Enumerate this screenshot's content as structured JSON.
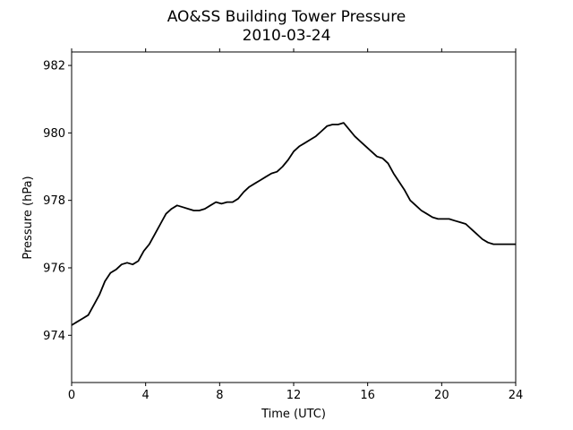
{
  "chart_data": {
    "type": "line",
    "title": "AO&SS Building Tower Pressure",
    "subtitle": "2010-03-24",
    "xlabel": "Time (UTC)",
    "ylabel": "Pressure (hPa)",
    "xlim": [
      0,
      24
    ],
    "ylim": [
      972.6,
      982.4
    ],
    "xticks": [
      0,
      4,
      8,
      12,
      16,
      20,
      24
    ],
    "yticks": [
      974,
      976,
      978,
      980,
      982
    ],
    "grid": false,
    "line_color": "#000000",
    "series": [
      {
        "x": [
          0,
          0.3,
          0.6,
          0.9,
          1.2,
          1.5,
          1.8,
          2.1,
          2.4,
          2.7,
          3.0,
          3.3,
          3.6,
          3.9,
          4.2,
          4.5,
          4.8,
          5.1,
          5.4,
          5.7,
          6.0,
          6.3,
          6.6,
          6.9,
          7.2,
          7.5,
          7.8,
          8.1,
          8.4,
          8.7,
          9.0,
          9.3,
          9.6,
          9.9,
          10.2,
          10.5,
          10.8,
          11.1,
          11.4,
          11.7,
          12.0,
          12.3,
          12.6,
          12.9,
          13.2,
          13.5,
          13.8,
          14.1,
          14.4,
          14.7,
          15.0,
          15.3,
          15.6,
          15.9,
          16.2,
          16.5,
          16.8,
          17.1,
          17.4,
          17.7,
          18.0,
          18.3,
          18.6,
          18.9,
          19.2,
          19.5,
          19.8,
          20.1,
          20.4,
          20.7,
          21.0,
          21.3,
          21.6,
          21.9,
          22.2,
          22.5,
          22.8,
          23.1,
          23.4,
          23.7,
          24.0
        ],
        "y": [
          974.3,
          974.4,
          974.5,
          974.6,
          974.9,
          975.2,
          975.6,
          975.85,
          975.95,
          976.1,
          976.15,
          976.1,
          976.2,
          976.5,
          976.7,
          977.0,
          977.3,
          977.6,
          977.75,
          977.85,
          977.8,
          977.75,
          977.7,
          977.7,
          977.75,
          977.85,
          977.95,
          977.9,
          977.95,
          977.95,
          978.05,
          978.25,
          978.4,
          978.5,
          978.6,
          978.7,
          978.8,
          978.85,
          979.0,
          979.2,
          979.45,
          979.6,
          979.7,
          979.8,
          979.9,
          980.05,
          980.2,
          980.25,
          980.25,
          980.3,
          980.1,
          979.9,
          979.75,
          979.6,
          979.45,
          979.3,
          979.25,
          979.1,
          978.8,
          978.55,
          978.3,
          978.0,
          977.85,
          977.7,
          977.6,
          977.5,
          977.45,
          977.45,
          977.45,
          977.4,
          977.35,
          977.3,
          977.15,
          977.0,
          976.85,
          976.75,
          976.7,
          976.7,
          976.7,
          976.7,
          976.7
        ]
      }
    ]
  }
}
